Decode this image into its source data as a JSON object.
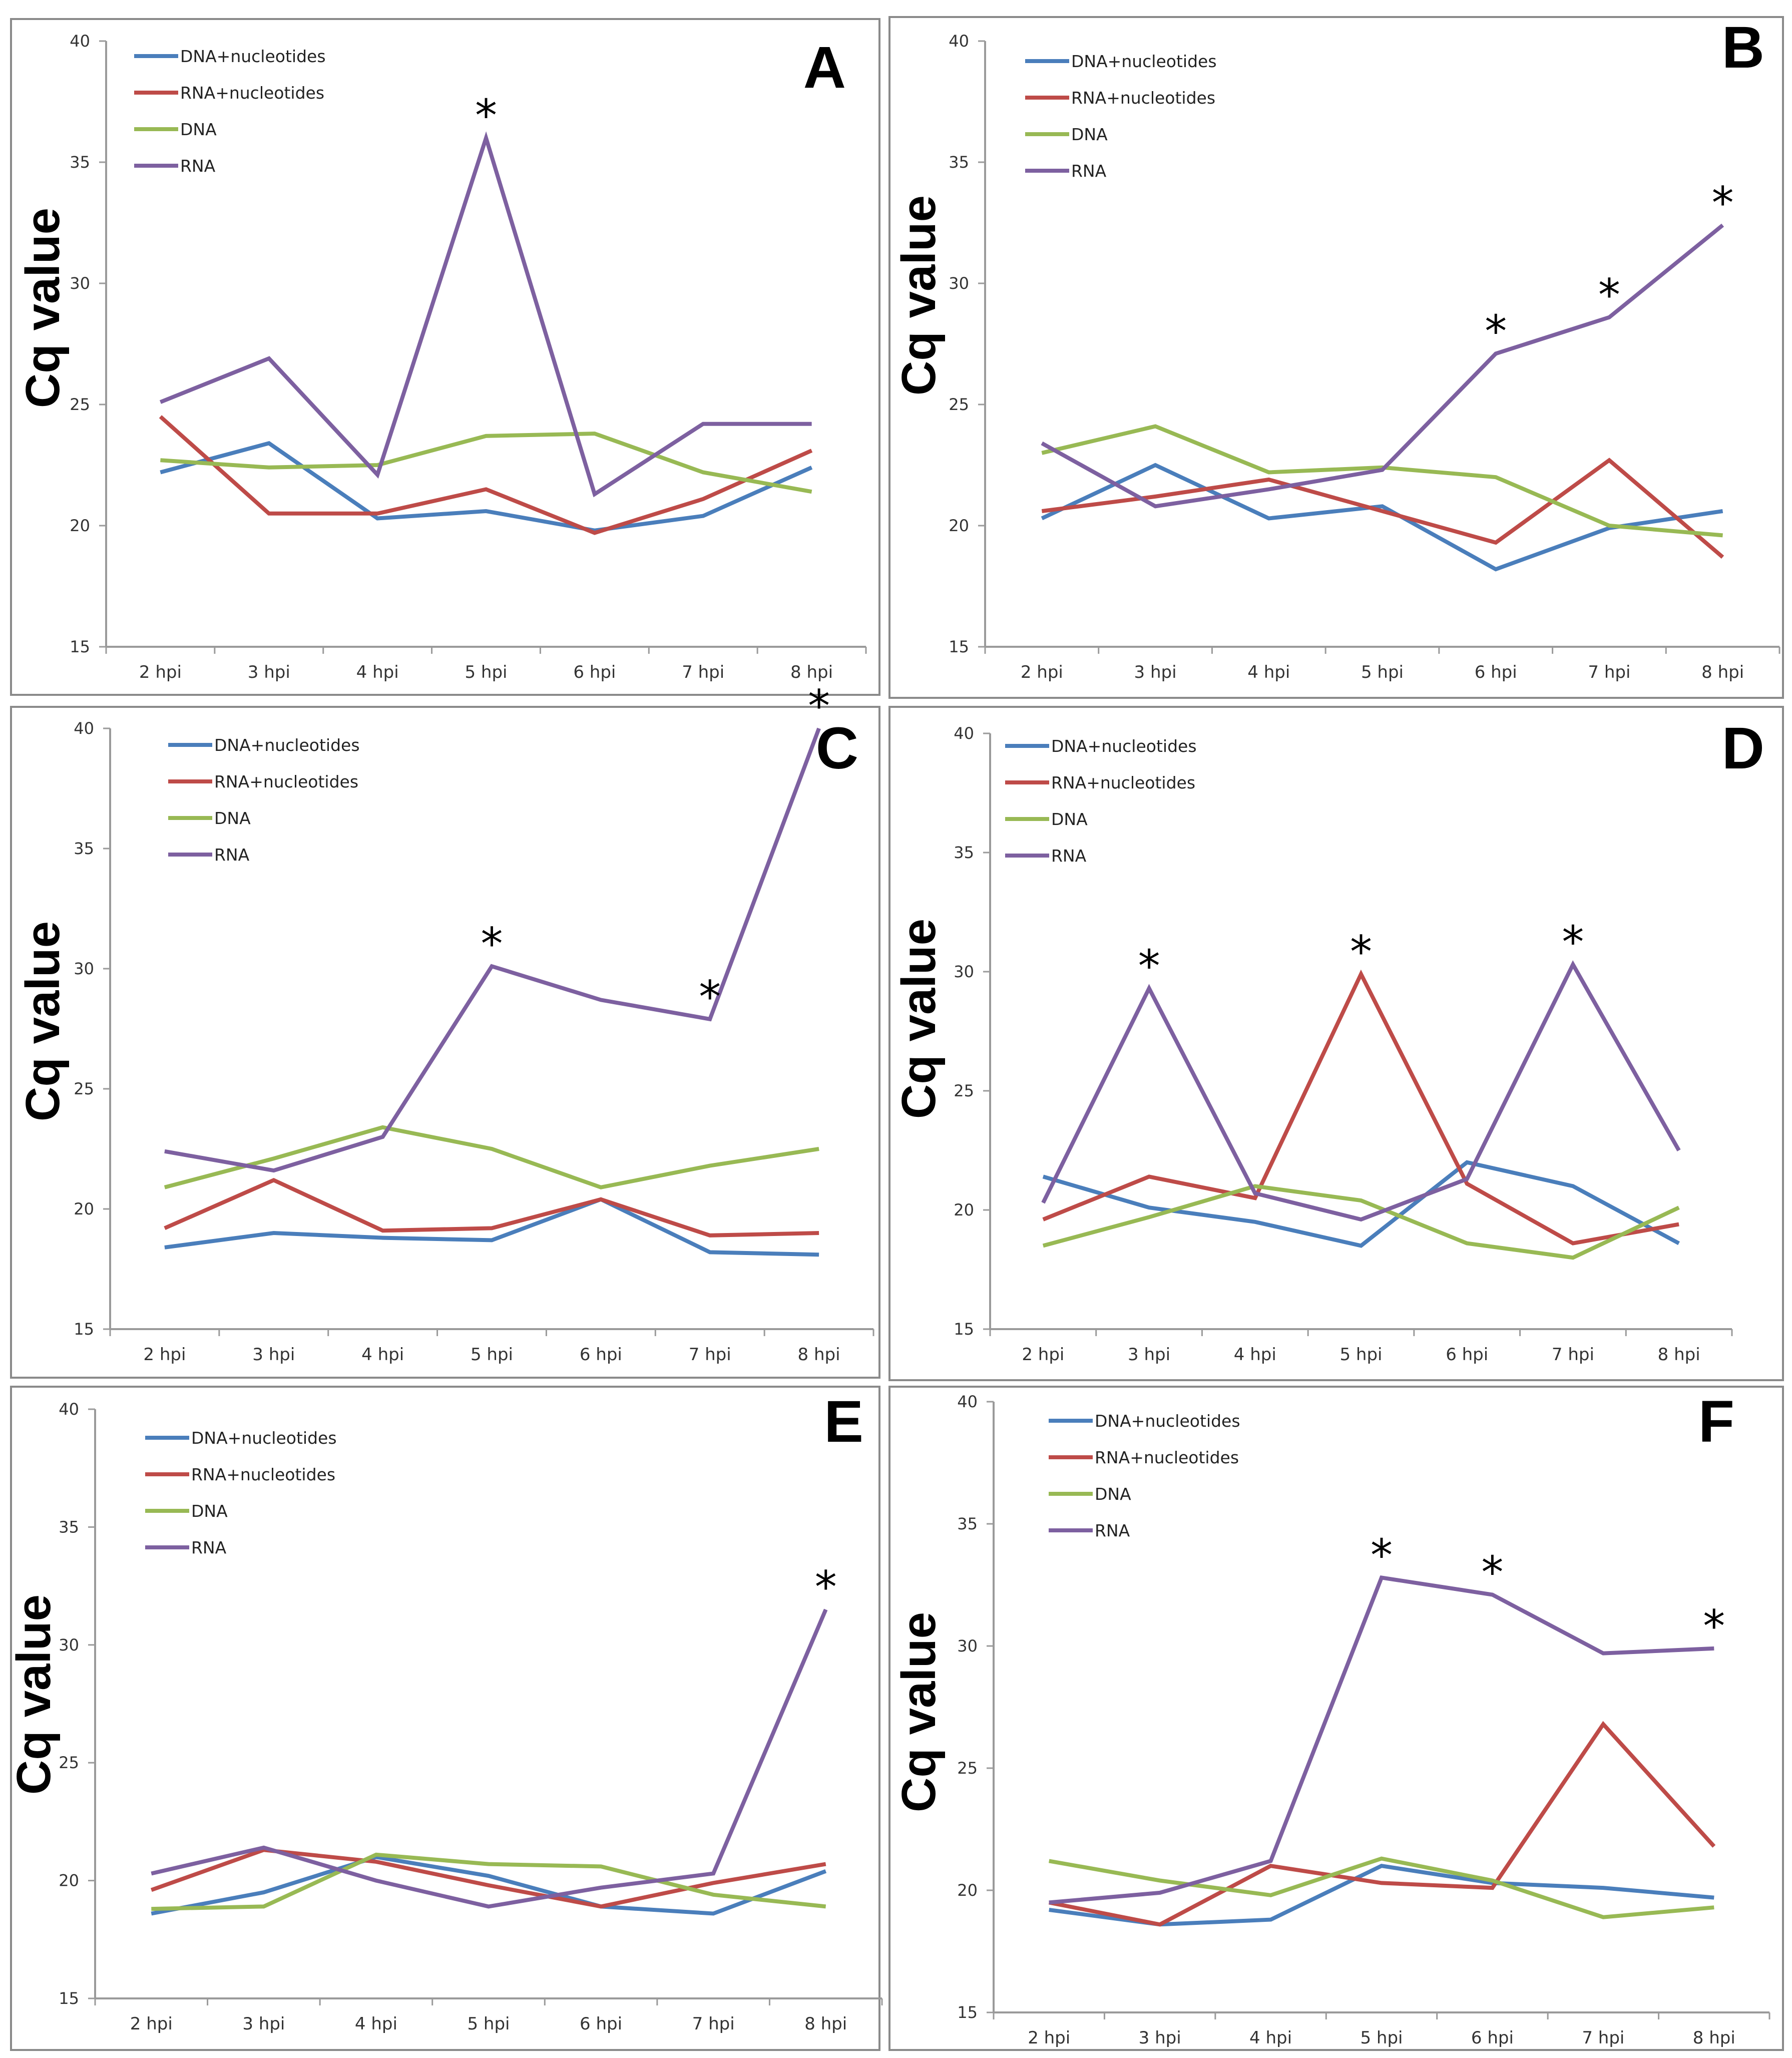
{
  "series_names": [
    "DNA+nucleotides",
    "RNA+nucleotides",
    "DNA",
    "RNA"
  ],
  "series_colors": [
    "#4a7ebb",
    "#be4b48",
    "#98b954",
    "#7d60a0"
  ],
  "chart_data": [
    {
      "panel": "A",
      "type": "line",
      "ylabel": "Cq value",
      "ylim": [
        15,
        40
      ],
      "yticks": [
        15,
        20,
        25,
        30,
        35,
        40
      ],
      "categories": [
        "2 hpi",
        "3 hpi",
        "4 hpi",
        "5 hpi",
        "6 hpi",
        "7 hpi",
        "8 hpi"
      ],
      "legend_position": "top-left",
      "grid": false,
      "series": [
        {
          "name": "DNA+nucleotides",
          "values": [
            22.2,
            23.4,
            20.3,
            20.6,
            19.8,
            20.4,
            22.4
          ]
        },
        {
          "name": "RNA+nucleotides",
          "values": [
            24.5,
            20.5,
            20.5,
            21.5,
            19.7,
            21.1,
            23.1
          ]
        },
        {
          "name": "DNA",
          "values": [
            22.7,
            22.4,
            22.5,
            23.7,
            23.8,
            22.2,
            21.4
          ]
        },
        {
          "name": "RNA",
          "values": [
            25.1,
            26.9,
            22.1,
            36.0,
            21.3,
            24.2,
            24.2
          ]
        }
      ],
      "annotations": [
        {
          "text": "*",
          "category": "5 hpi",
          "value": 36.0
        }
      ]
    },
    {
      "panel": "B",
      "type": "line",
      "ylabel": "Cq value",
      "ylim": [
        15,
        40
      ],
      "yticks": [
        15,
        20,
        25,
        30,
        35,
        40
      ],
      "categories": [
        "2 hpi",
        "3 hpi",
        "4 hpi",
        "5 hpi",
        "6 hpi",
        "7 hpi",
        "8 hpi"
      ],
      "legend_position": "top-left",
      "grid": false,
      "series": [
        {
          "name": "DNA+nucleotides",
          "values": [
            20.3,
            22.5,
            20.3,
            20.8,
            18.2,
            19.9,
            20.6
          ]
        },
        {
          "name": "RNA+nucleotides",
          "values": [
            20.6,
            21.2,
            21.9,
            20.6,
            19.3,
            22.7,
            18.7
          ]
        },
        {
          "name": "DNA",
          "values": [
            23.0,
            24.1,
            22.2,
            22.4,
            22.0,
            20.0,
            19.6
          ]
        },
        {
          "name": "RNA",
          "values": [
            23.4,
            20.8,
            21.5,
            22.3,
            27.1,
            28.6,
            32.4
          ]
        }
      ],
      "annotations": [
        {
          "text": "*",
          "category": "6 hpi",
          "value": 27.1
        },
        {
          "text": "*",
          "category": "7 hpi",
          "value": 28.6
        },
        {
          "text": "*",
          "category": "8 hpi",
          "value": 32.4
        }
      ]
    },
    {
      "panel": "C",
      "type": "line",
      "ylabel": "Cq value",
      "ylim": [
        15,
        40
      ],
      "yticks": [
        15,
        20,
        25,
        30,
        35,
        40
      ],
      "categories": [
        "2 hpi",
        "3 hpi",
        "4 hpi",
        "5 hpi",
        "6 hpi",
        "7 hpi",
        "8 hpi"
      ],
      "legend_position": "top-left",
      "grid": false,
      "series": [
        {
          "name": "DNA+nucleotides",
          "values": [
            18.4,
            19.0,
            18.8,
            18.7,
            20.4,
            18.2,
            18.1
          ]
        },
        {
          "name": "RNA+nucleotides",
          "values": [
            19.2,
            21.2,
            19.1,
            19.2,
            20.4,
            18.9,
            19.0
          ]
        },
        {
          "name": "DNA",
          "values": [
            20.9,
            22.1,
            23.4,
            22.5,
            20.9,
            21.8,
            22.5
          ]
        },
        {
          "name": "RNA",
          "values": [
            22.4,
            21.6,
            23.0,
            30.1,
            28.7,
            27.9,
            40.0
          ]
        }
      ],
      "annotations": [
        {
          "text": "*",
          "category": "5 hpi",
          "value": 30.1
        },
        {
          "text": "*",
          "category": "7 hpi",
          "value": 27.9
        },
        {
          "text": "*",
          "category": "8 hpi",
          "value": 40.0
        }
      ]
    },
    {
      "panel": "D",
      "type": "line",
      "ylabel": "Cq value",
      "ylim": [
        15,
        40
      ],
      "yticks": [
        15,
        20,
        25,
        30,
        35,
        40
      ],
      "categories": [
        "2 hpi",
        "3 hpi",
        "4 hpi",
        "5 hpi",
        "6 hpi",
        "7 hpi",
        "8 hpi"
      ],
      "legend_position": "top-left",
      "grid": false,
      "series": [
        {
          "name": "DNA+nucleotides",
          "values": [
            21.4,
            20.1,
            19.5,
            18.5,
            22.0,
            21.0,
            18.6
          ]
        },
        {
          "name": "RNA+nucleotides",
          "values": [
            19.6,
            21.4,
            20.5,
            29.9,
            21.1,
            18.6,
            19.4
          ]
        },
        {
          "name": "DNA",
          "values": [
            18.5,
            19.7,
            21.0,
            20.4,
            18.6,
            18.0,
            20.1
          ]
        },
        {
          "name": "RNA",
          "values": [
            20.3,
            29.3,
            20.7,
            19.6,
            21.3,
            30.3,
            22.5
          ]
        }
      ],
      "annotations": [
        {
          "text": "*",
          "category": "3 hpi",
          "value": 29.3
        },
        {
          "text": "*",
          "category": "5 hpi",
          "value": 29.9
        },
        {
          "text": "*",
          "category": "7 hpi",
          "value": 30.3
        }
      ]
    },
    {
      "panel": "E",
      "type": "line",
      "ylabel": "Cq value",
      "ylim": [
        15,
        40
      ],
      "yticks": [
        15,
        20,
        25,
        30,
        35,
        40
      ],
      "categories": [
        "2 hpi",
        "3 hpi",
        "4 hpi",
        "5 hpi",
        "6 hpi",
        "7 hpi",
        "8 hpi"
      ],
      "legend_position": "top-left",
      "grid": false,
      "series": [
        {
          "name": "DNA+nucleotides",
          "values": [
            18.6,
            19.5,
            21.0,
            20.2,
            18.9,
            18.6,
            20.4
          ]
        },
        {
          "name": "RNA+nucleotides",
          "values": [
            19.6,
            21.3,
            20.8,
            19.8,
            18.9,
            19.9,
            20.7
          ]
        },
        {
          "name": "DNA",
          "values": [
            18.8,
            18.9,
            21.1,
            20.7,
            20.6,
            19.4,
            18.9
          ]
        },
        {
          "name": "RNA",
          "values": [
            20.3,
            21.4,
            20.0,
            18.9,
            19.7,
            20.3,
            31.5
          ]
        }
      ],
      "annotations": [
        {
          "text": "*",
          "category": "8 hpi",
          "value": 31.5
        }
      ]
    },
    {
      "panel": "F",
      "type": "line",
      "ylabel": "Cq value",
      "ylim": [
        15,
        40
      ],
      "yticks": [
        15,
        20,
        25,
        30,
        35,
        40
      ],
      "categories": [
        "2 hpi",
        "3 hpi",
        "4 hpi",
        "5 hpi",
        "6 hpi",
        "7 hpi",
        "8 hpi"
      ],
      "legend_position": "top-left",
      "grid": false,
      "series": [
        {
          "name": "DNA+nucleotides",
          "values": [
            19.2,
            18.6,
            18.8,
            21.0,
            20.3,
            20.1,
            19.7
          ]
        },
        {
          "name": "RNA+nucleotides",
          "values": [
            19.5,
            18.6,
            21.0,
            20.3,
            20.1,
            26.8,
            21.8
          ]
        },
        {
          "name": "DNA",
          "values": [
            21.2,
            20.4,
            19.8,
            21.3,
            20.4,
            18.9,
            19.3
          ]
        },
        {
          "name": "RNA",
          "values": [
            19.5,
            19.9,
            21.2,
            32.8,
            32.1,
            29.7,
            29.9
          ]
        }
      ],
      "annotations": [
        {
          "text": "*",
          "category": "5 hpi",
          "value": 32.8
        },
        {
          "text": "*",
          "category": "6 hpi",
          "value": 32.1
        },
        {
          "text": "*",
          "category": "8 hpi",
          "value": 29.9
        }
      ]
    }
  ]
}
